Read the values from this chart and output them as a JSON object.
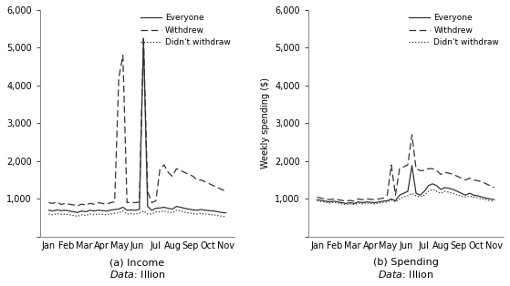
{
  "months_labels": [
    "Jan",
    "Feb",
    "Mar",
    "Apr",
    "May",
    "Jun",
    "Jul",
    "Aug",
    "Sep",
    "Oct",
    "Nov"
  ],
  "n_points": 44,
  "income_everyone": [
    700,
    680,
    710,
    690,
    700,
    680,
    660,
    640,
    680,
    660,
    700,
    680,
    700,
    690,
    680,
    700,
    720,
    730,
    780,
    700,
    710,
    700,
    720,
    5200,
    800,
    700,
    750,
    760,
    780,
    750,
    730,
    800,
    780,
    750,
    730,
    710,
    700,
    720,
    700,
    690,
    680,
    660,
    640,
    630
  ],
  "income_withdrew": [
    900,
    880,
    920,
    850,
    880,
    860,
    840,
    820,
    860,
    840,
    880,
    860,
    900,
    880,
    860,
    900,
    920,
    4200,
    4800,
    900,
    910,
    900,
    920,
    5300,
    1200,
    900,
    950,
    1800,
    1900,
    1700,
    1600,
    1800,
    1750,
    1700,
    1650,
    1600,
    1500,
    1500,
    1450,
    1400,
    1350,
    1300,
    1250,
    1200
  ],
  "income_didnt": [
    600,
    580,
    610,
    590,
    600,
    580,
    560,
    540,
    580,
    560,
    600,
    580,
    600,
    590,
    580,
    600,
    620,
    630,
    680,
    600,
    610,
    600,
    620,
    680,
    600,
    600,
    650,
    660,
    680,
    650,
    630,
    700,
    680,
    650,
    630,
    610,
    600,
    620,
    600,
    590,
    580,
    560,
    540,
    530
  ],
  "spending_everyone": [
    980,
    960,
    940,
    920,
    940,
    920,
    900,
    880,
    900,
    880,
    920,
    900,
    920,
    910,
    900,
    920,
    940,
    950,
    1000,
    950,
    1100,
    1150,
    1200,
    1880,
    1150,
    1100,
    1200,
    1350,
    1400,
    1350,
    1250,
    1300,
    1280,
    1250,
    1200,
    1150,
    1100,
    1150,
    1100,
    1080,
    1050,
    1020,
    1000,
    980
  ],
  "spending_withdrew": [
    1050,
    1020,
    1000,
    980,
    1000,
    980,
    960,
    940,
    960,
    940,
    1000,
    980,
    1000,
    990,
    980,
    1000,
    1020,
    1100,
    1900,
    1100,
    1800,
    1850,
    1900,
    2700,
    1800,
    1750,
    1750,
    1800,
    1800,
    1750,
    1650,
    1700,
    1680,
    1650,
    1600,
    1550,
    1500,
    1550,
    1500,
    1480,
    1450,
    1400,
    1350,
    1300
  ],
  "spending_didnt": [
    950,
    930,
    910,
    890,
    910,
    890,
    870,
    850,
    870,
    850,
    890,
    870,
    890,
    880,
    870,
    890,
    910,
    920,
    970,
    920,
    1000,
    1050,
    1080,
    1150,
    1080,
    1050,
    1100,
    1200,
    1250,
    1200,
    1150,
    1200,
    1180,
    1150,
    1100,
    1080,
    1050,
    1070,
    1050,
    1030,
    1000,
    980,
    950,
    940
  ],
  "income_ylim": [
    0,
    6000
  ],
  "income_yticks": [
    0,
    1000,
    2000,
    3000,
    4000,
    5000,
    6000
  ],
  "spending_ylim": [
    0,
    6000
  ],
  "spending_yticks": [
    0,
    1000,
    2000,
    3000,
    4000,
    5000,
    6000
  ],
  "label_everyone": "Everyone",
  "label_withdrew": "Withdrew",
  "label_didnt": "Didn't withdraw",
  "title_a": "(a) Income",
  "title_b": "(b) Spending",
  "source_a": "Data: Illion",
  "source_b": "Data: Illion",
  "ylabel_b": "Weekly spending ($)",
  "line_color": "#333333",
  "fig_bg": "#ffffff"
}
